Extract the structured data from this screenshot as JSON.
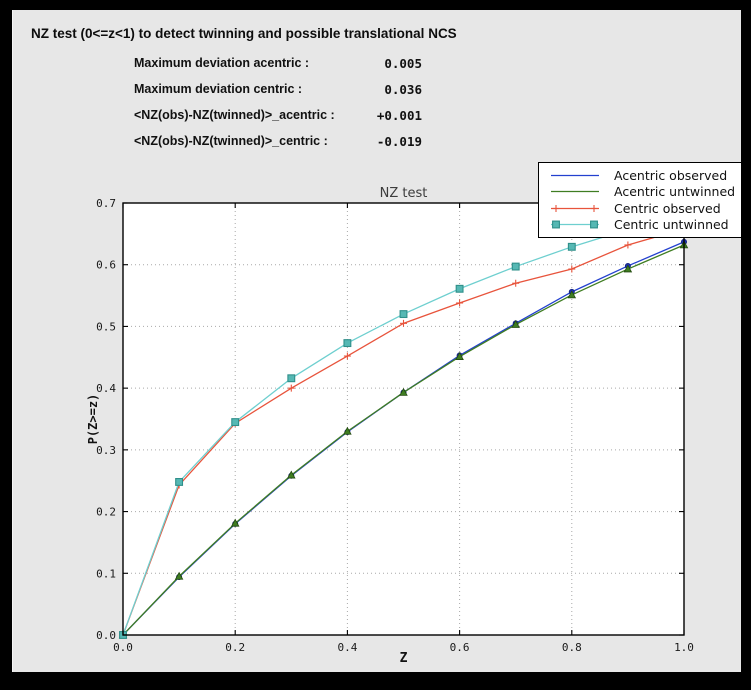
{
  "header": {
    "title": "NZ test (0<=z<1) to detect twinning and possible translational NCS"
  },
  "stats": {
    "rows": [
      {
        "label": "Maximum deviation acentric :",
        "value": "0.005"
      },
      {
        "label": "Maximum deviation centric :",
        "value": "0.036"
      },
      {
        "label": "<NZ(obs)-NZ(twinned)>_acentric :",
        "value": "+0.001"
      },
      {
        "label": "<NZ(obs)-NZ(twinned)>_centric :",
        "value": "-0.019"
      }
    ]
  },
  "chart_data": {
    "type": "line",
    "title": "NZ test",
    "xlabel": "Z",
    "ylabel": "P(Z>=z)",
    "xlim": [
      0.0,
      1.0
    ],
    "ylim": [
      0.0,
      0.7
    ],
    "grid": true,
    "legend_position": "top-right",
    "xticks": [
      0.0,
      0.2,
      0.4,
      0.6,
      0.8,
      1.0
    ],
    "xtick_labels": [
      "0.0",
      "0.2",
      "0.4",
      "0.6",
      "0.8",
      "1.0"
    ],
    "yticks": [
      0.0,
      0.1,
      0.2,
      0.3,
      0.4,
      0.5,
      0.6,
      0.7
    ],
    "ytick_labels": [
      "0.0",
      "0.1",
      "0.2",
      "0.3",
      "0.4",
      "0.5",
      "0.6",
      "0.7"
    ],
    "x": [
      0.0,
      0.1,
      0.2,
      0.3,
      0.4,
      0.5,
      0.6,
      0.7,
      0.8,
      0.9,
      1.0
    ],
    "series": [
      {
        "name": "Acentric observed",
        "color": "#2340cf",
        "marker": "circle",
        "marker_color": "#1b2fb4",
        "marker_edge": "#10207a",
        "values": [
          0.0,
          0.094,
          0.18,
          0.258,
          0.329,
          0.393,
          0.453,
          0.505,
          0.556,
          0.598,
          0.637
        ]
      },
      {
        "name": "Acentric untwinned",
        "color": "#3f7d22",
        "marker": "triangle",
        "marker_color": "#3f7d22",
        "marker_edge": "#234a10",
        "values": [
          0.0,
          0.095,
          0.181,
          0.259,
          0.33,
          0.393,
          0.451,
          0.503,
          0.551,
          0.593,
          0.632
        ]
      },
      {
        "name": "Centric observed",
        "color": "#e8543c",
        "marker": "plus",
        "marker_color": "#e8543c",
        "marker_edge": "#e8543c",
        "values": [
          0.0,
          0.243,
          0.343,
          0.4,
          0.452,
          0.505,
          0.538,
          0.57,
          0.593,
          0.632,
          0.658
        ]
      },
      {
        "name": "Centric untwinned",
        "color": "#6ecfcf",
        "marker": "square",
        "marker_color": "#56b8b4",
        "marker_edge": "#2f8f8a",
        "values": [
          0.0,
          0.248,
          0.345,
          0.416,
          0.473,
          0.52,
          0.561,
          0.597,
          0.629,
          0.657,
          0.683
        ]
      }
    ]
  }
}
